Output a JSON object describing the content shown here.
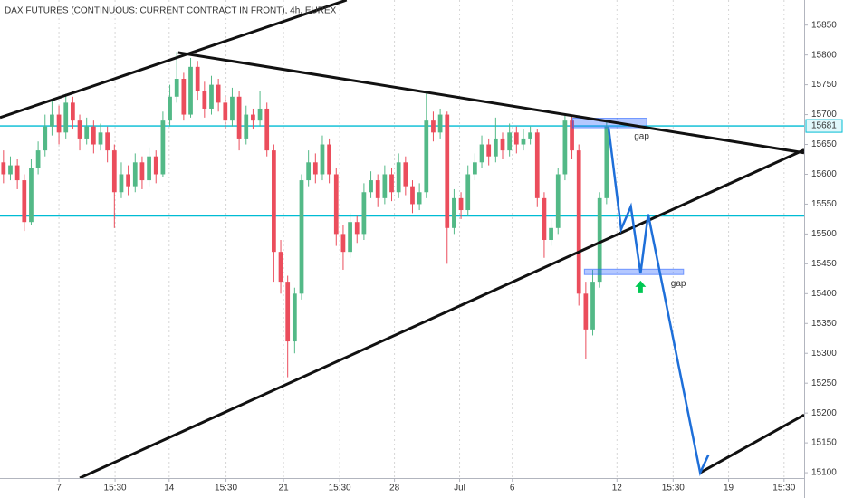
{
  "chart_data": {
    "type": "candlestick",
    "title": "DAX FUTURES (CONTINUOUS: CURRENT CONTRACT IN FRONT), 4h, EUREX",
    "up_color": "#53b987",
    "down_color": "#eb4d5c",
    "x": [
      0,
      1,
      2,
      3,
      4,
      5,
      6,
      7,
      8,
      9,
      10,
      11,
      12,
      13,
      14,
      15,
      16,
      17,
      18,
      19,
      20,
      21,
      22,
      23,
      24,
      25,
      26,
      27,
      28,
      29,
      30,
      31,
      32,
      33,
      34,
      35,
      36,
      37,
      38,
      39,
      40,
      41,
      42,
      43,
      44,
      45,
      46,
      47,
      48,
      49,
      50,
      51,
      52,
      53,
      54,
      55,
      56,
      57,
      58,
      59,
      60,
      61,
      62,
      63,
      64,
      65,
      66,
      67,
      68,
      69,
      70,
      71,
      72,
      73,
      74,
      75,
      76,
      77,
      78,
      79,
      80,
      81,
      82,
      83,
      84,
      85,
      86,
      87
    ],
    "open": [
      15620,
      15600,
      15615,
      15590,
      15520,
      15610,
      15640,
      15680,
      15700,
      15670,
      15720,
      15690,
      15660,
      15680,
      15650,
      15670,
      15640,
      15570,
      15600,
      15580,
      15620,
      15590,
      15630,
      15600,
      15690,
      15730,
      15760,
      15700,
      15780,
      15740,
      15710,
      15750,
      15720,
      15690,
      15730,
      15660,
      15700,
      15690,
      15710,
      15640,
      15470,
      15420,
      15320,
      15400,
      15590,
      15620,
      15600,
      15650,
      15600,
      15500,
      15470,
      15520,
      15500,
      15570,
      15590,
      15560,
      15600,
      15570,
      15620,
      15580,
      15550,
      15570,
      15690,
      15670,
      15700,
      15510,
      15560,
      15540,
      15600,
      15620,
      15650,
      15630,
      15660,
      15640,
      15670,
      15650,
      15660,
      15670,
      15560,
      15490,
      15510,
      15600,
      15690,
      15640,
      15400,
      15340,
      15420,
      15560
    ],
    "high": [
      15640,
      15630,
      15625,
      15600,
      15625,
      15655,
      15700,
      15725,
      15715,
      15735,
      15730,
      15700,
      15695,
      15690,
      15685,
      15680,
      15650,
      15620,
      15615,
      15635,
      15630,
      15645,
      15640,
      15705,
      15750,
      15805,
      15770,
      15795,
      15790,
      15755,
      15765,
      15760,
      15730,
      15745,
      15740,
      15715,
      15710,
      15740,
      15720,
      15650,
      15490,
      15430,
      15410,
      15600,
      15640,
      15635,
      15665,
      15660,
      15610,
      15515,
      15535,
      15530,
      15585,
      15605,
      15600,
      15615,
      15610,
      15635,
      15630,
      15590,
      15585,
      15740,
      15705,
      15710,
      15705,
      15575,
      15570,
      15615,
      15635,
      15665,
      15660,
      15695,
      15670,
      15685,
      15680,
      15675,
      15680,
      15675,
      15570,
      15525,
      15610,
      15700,
      15700,
      15650,
      15420,
      15440,
      15570,
      15690
    ],
    "low": [
      15585,
      15590,
      15575,
      15505,
      15515,
      15600,
      15630,
      15665,
      15650,
      15660,
      15675,
      15640,
      15650,
      15635,
      15640,
      15620,
      15510,
      15560,
      15565,
      15570,
      15575,
      15580,
      15585,
      15595,
      15680,
      15720,
      15690,
      15695,
      15725,
      15695,
      15700,
      15705,
      15675,
      15680,
      15640,
      15650,
      15675,
      15680,
      15630,
      15420,
      15400,
      15260,
      15300,
      15390,
      15580,
      15585,
      15590,
      15585,
      15480,
      15440,
      15460,
      15485,
      15490,
      15560,
      15545,
      15550,
      15555,
      15560,
      15565,
      15535,
      15540,
      15560,
      15655,
      15660,
      15450,
      15500,
      15525,
      15530,
      15590,
      15610,
      15615,
      15620,
      15625,
      15630,
      15635,
      15640,
      15650,
      15545,
      15460,
      15480,
      15500,
      15590,
      15625,
      15380,
      15290,
      15330,
      15410,
      15550
    ],
    "close": [
      15600,
      15615,
      15590,
      15520,
      15610,
      15640,
      15680,
      15700,
      15670,
      15720,
      15690,
      15660,
      15680,
      15650,
      15670,
      15640,
      15570,
      15600,
      15580,
      15620,
      15590,
      15630,
      15600,
      15690,
      15730,
      15760,
      15700,
      15780,
      15740,
      15710,
      15750,
      15720,
      15690,
      15730,
      15660,
      15700,
      15690,
      15710,
      15640,
      15470,
      15420,
      15320,
      15400,
      15590,
      15620,
      15600,
      15650,
      15600,
      15500,
      15470,
      15520,
      15500,
      15570,
      15590,
      15560,
      15600,
      15570,
      15620,
      15580,
      15550,
      15570,
      15690,
      15670,
      15700,
      15510,
      15560,
      15540,
      15600,
      15620,
      15650,
      15630,
      15660,
      15640,
      15670,
      15650,
      15660,
      15670,
      15560,
      15490,
      15510,
      15600,
      15690,
      15640,
      15400,
      15340,
      15420,
      15560,
      15680
    ],
    "xlim": [
      -0.5,
      115.5
    ],
    "ylim": [
      15091,
      15892
    ],
    "yticks": [
      15100,
      15150,
      15200,
      15250,
      15300,
      15350,
      15400,
      15450,
      15500,
      15550,
      15600,
      15650,
      15700,
      15750,
      15800,
      15850
    ],
    "xticks": [
      {
        "value": 8.0,
        "label": "7"
      },
      {
        "value": 16.1,
        "label": "15:30"
      },
      {
        "value": 23.9,
        "label": "14"
      },
      {
        "value": 32.1,
        "label": "15:30"
      },
      {
        "value": 40.4,
        "label": "21"
      },
      {
        "value": 48.5,
        "label": "15:30"
      },
      {
        "value": 56.4,
        "label": "28"
      },
      {
        "value": 65.8,
        "label": "Jul"
      },
      {
        "value": 73.4,
        "label": "6"
      },
      {
        "value": 88.5,
        "label": "12"
      },
      {
        "value": 96.6,
        "label": "15:30"
      },
      {
        "value": 104.6,
        "label": "19"
      },
      {
        "value": 112.6,
        "label": "15:30"
      }
    ],
    "grid": true,
    "last_price": 15681,
    "levels": [
      {
        "value": 15681,
        "color": "#00bcd4"
      },
      {
        "value": 15530,
        "color": "#00bcd4"
      }
    ],
    "trendlines": [
      {
        "color": "#111111",
        "x": [
          -0.5,
          49.5
        ],
        "y": [
          15695,
          15892
        ]
      },
      {
        "color": "#111111",
        "x": [
          25.2,
          115.5
        ],
        "y": [
          15804,
          15636
        ]
      },
      {
        "color": "#111111",
        "x": [
          11,
          115.5
        ],
        "y": [
          15091,
          15641
        ]
      },
      {
        "color": "#111111",
        "x": [
          100.5,
          115.5
        ],
        "y": [
          15100,
          15197
        ]
      }
    ],
    "projection": {
      "color": "#1e6fd9",
      "x": [
        87.3,
        89.1,
        90.5,
        91.9,
        93.0,
        100.5,
        101.7
      ],
      "y": [
        15677,
        15508,
        15546,
        15434,
        15533,
        15100,
        15130
      ]
    },
    "gaps": [
      {
        "label": "gap",
        "color": "#2962ff",
        "x": [
          82.1,
          92.8
        ],
        "y": [
          15678,
          15694
        ]
      },
      {
        "label": "gap",
        "color": "#2962ff",
        "x": [
          83.8,
          98.1
        ],
        "y": [
          15432,
          15441
        ]
      }
    ],
    "gap_label_color": "#9c27b0",
    "signal": {
      "x": 91.9,
      "y": 15422,
      "color": "#00c853"
    }
  }
}
